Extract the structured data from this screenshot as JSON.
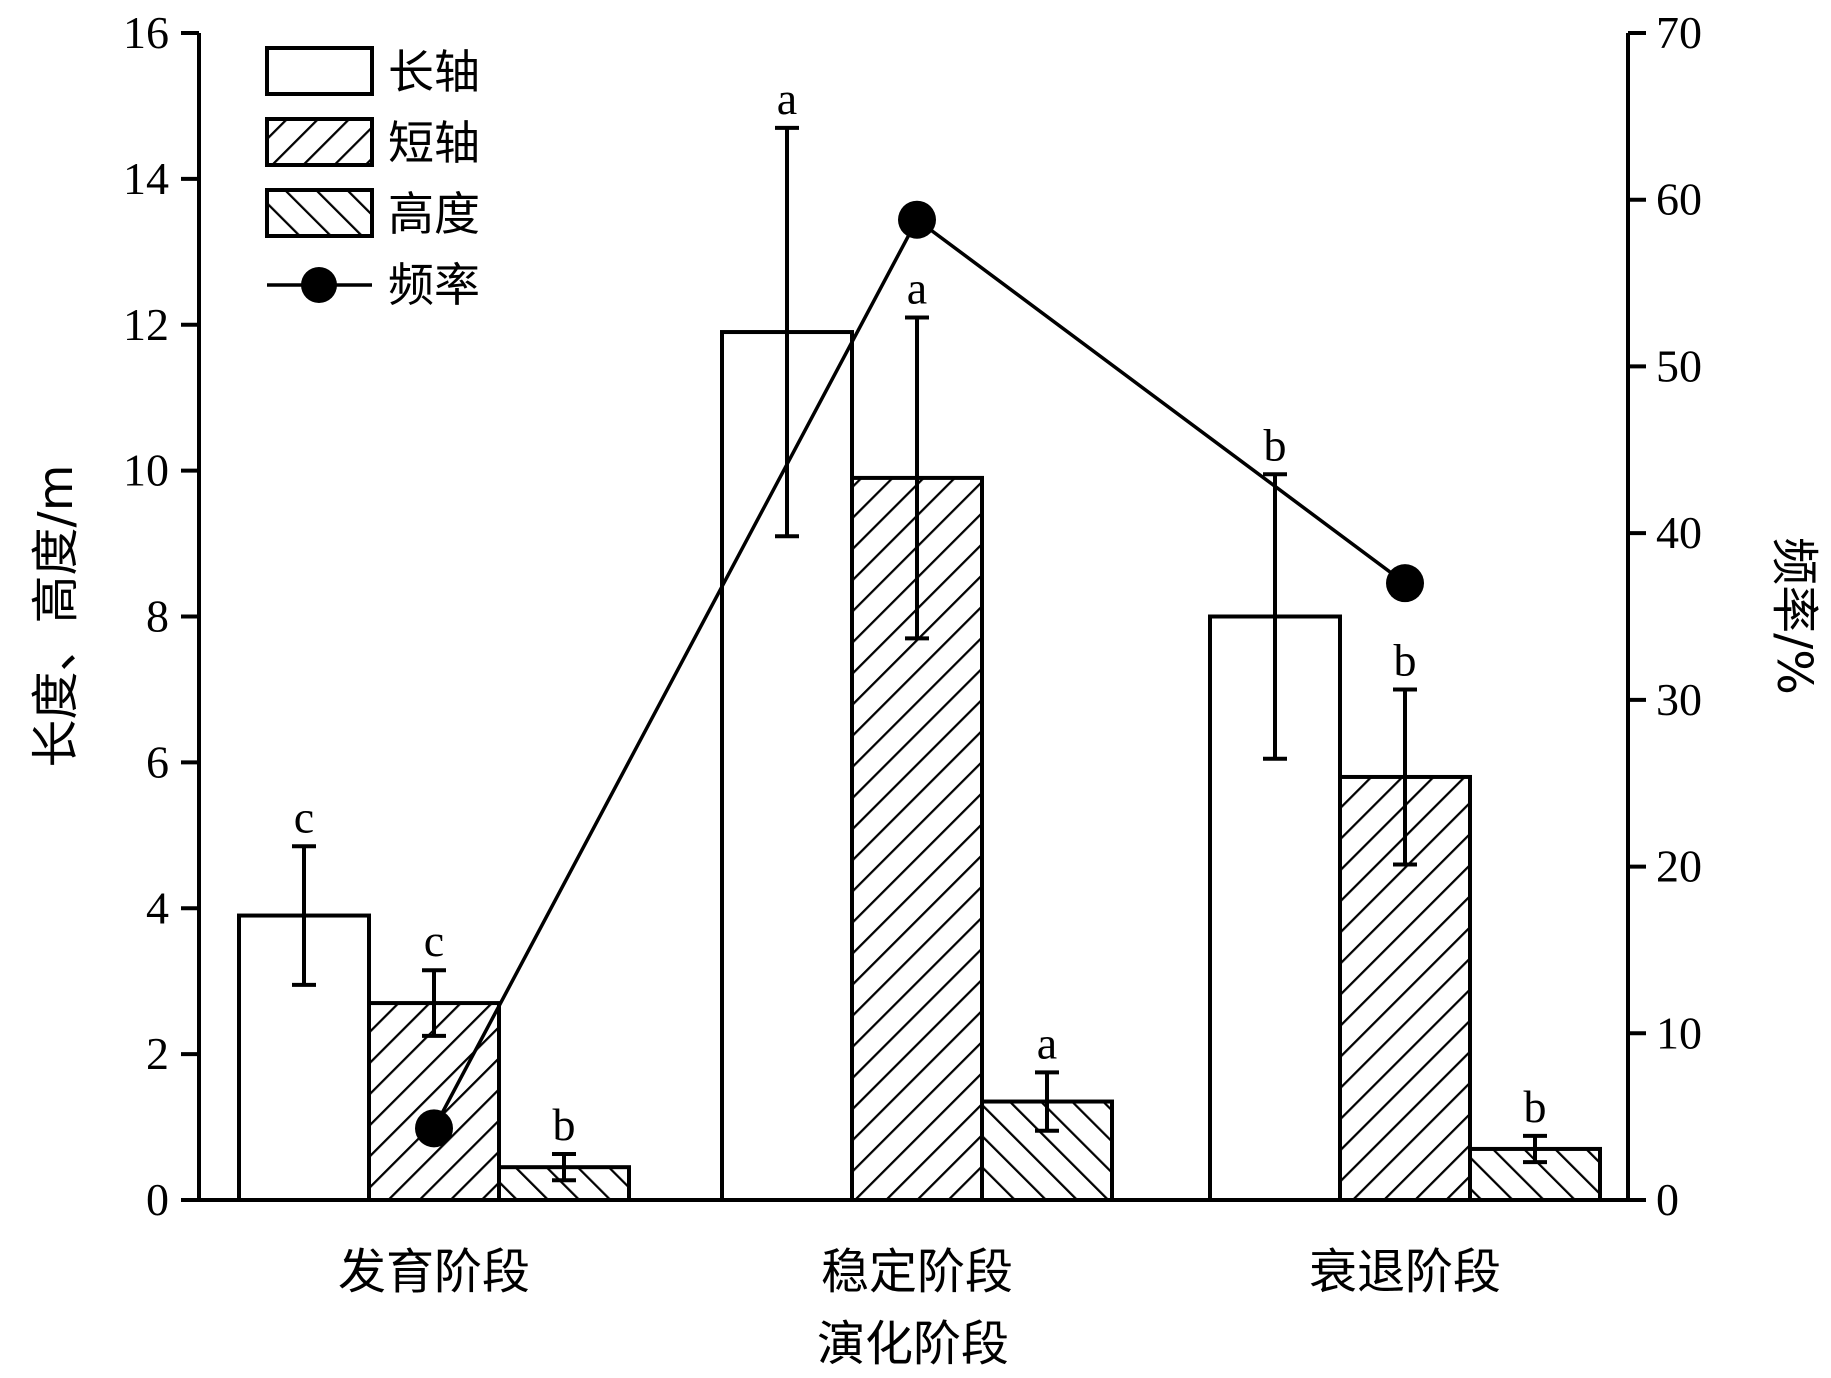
{
  "chart_data": {
    "type": "bar",
    "title": "",
    "xlabel": "演化阶段",
    "ylabel": "长度、高度/m",
    "y2label": "频率/%",
    "ylim": [
      0,
      16
    ],
    "y2lim": [
      0,
      70
    ],
    "yticks": [
      "0",
      "2",
      "4",
      "6",
      "8",
      "10",
      "12",
      "14",
      "16"
    ],
    "y2ticks": [
      "0",
      "10",
      "20",
      "30",
      "40",
      "50",
      "60",
      "70"
    ],
    "categories": [
      "发育阶段",
      "稳定阶段",
      "衰退阶段"
    ],
    "series": [
      {
        "name": "长轴",
        "axis": "left",
        "pattern": "none",
        "values": [
          3.9,
          11.9,
          8.0
        ],
        "errors": [
          0.95,
          2.8,
          1.95
        ],
        "letters": [
          "c",
          "a",
          "b"
        ]
      },
      {
        "name": "短轴",
        "axis": "left",
        "pattern": "diagonal-forward",
        "values": [
          2.7,
          9.9,
          5.8
        ],
        "errors": [
          0.45,
          2.2,
          1.2
        ],
        "letters": [
          "c",
          "a",
          "b"
        ]
      },
      {
        "name": "高度",
        "axis": "left",
        "pattern": "diagonal-backward",
        "values": [
          0.45,
          1.35,
          0.7
        ],
        "errors": [
          0.18,
          0.4,
          0.18
        ],
        "letters": [
          "b",
          "a",
          "b"
        ]
      }
    ],
    "line_series": {
      "name": "频率",
      "axis": "right",
      "values": [
        4.3,
        58.8,
        37.0
      ]
    },
    "legend_position": "top-left",
    "grid": false,
    "colors": {
      "bar_fill": "#ffffff",
      "stroke": "#000000",
      "line": "#000000"
    }
  }
}
